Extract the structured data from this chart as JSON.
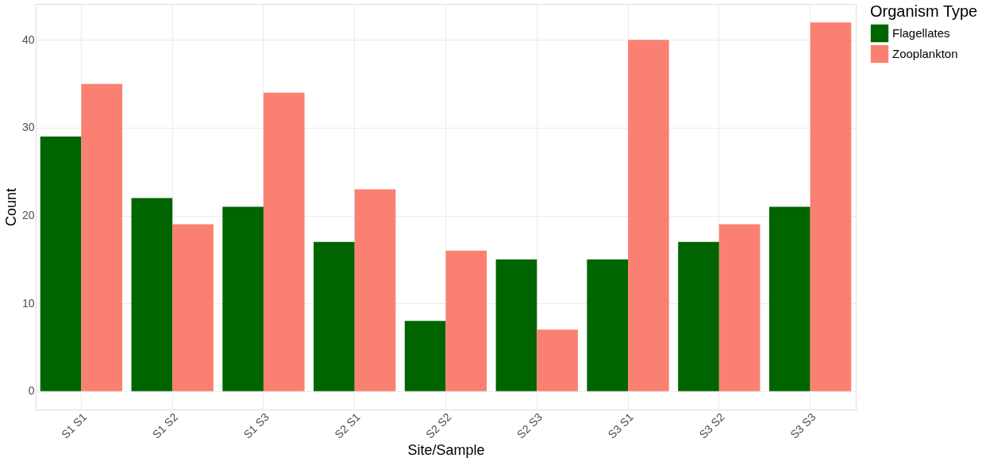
{
  "chart_data": {
    "type": "bar",
    "xlabel": "Site/Sample",
    "ylabel": "Count",
    "legend_title": "Organism Type",
    "categories": [
      "S1 S1",
      "S1 S2",
      "S1 S3",
      "S2 S1",
      "S2 S2",
      "S2 S3",
      "S3 S1",
      "S3 S2",
      "S3 S3"
    ],
    "series": [
      {
        "name": "Flagellates",
        "color": "#006400",
        "values": [
          29,
          22,
          21,
          17,
          8,
          15,
          15,
          17,
          21
        ]
      },
      {
        "name": "Zooplankton",
        "color": "#fa8072",
        "values": [
          35,
          19,
          34,
          23,
          16,
          7,
          40,
          19,
          42
        ]
      }
    ],
    "ylim": [
      -2.1,
      44.1
    ],
    "yticks": [
      0,
      10,
      20,
      30,
      40
    ],
    "grid": true,
    "legend": "right"
  }
}
